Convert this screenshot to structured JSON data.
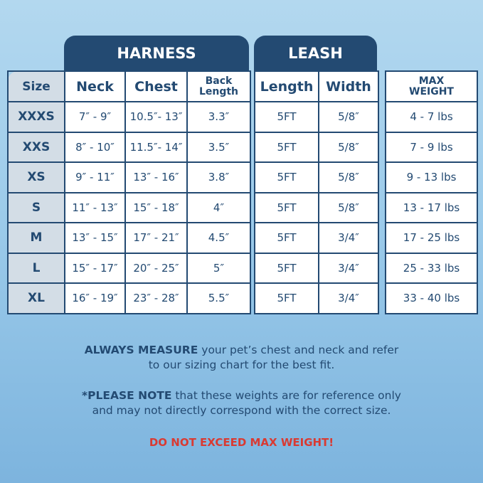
{
  "headers": {
    "harness": "HARNESS",
    "leash": "LEASH"
  },
  "columns": {
    "size": "Size",
    "neck": "Neck",
    "chest": "Chest",
    "back_1": "Back",
    "back_2": "Length",
    "length": "Length",
    "width": "Width",
    "max_1": "MAX",
    "max_2": "WEIGHT"
  },
  "rows": [
    {
      "size": "XXXS",
      "neck": "7″ - 9″",
      "chest": "10.5″- 13″",
      "back": "3.3″",
      "length": "5FT",
      "width": "5/8″",
      "weight": "4 - 7 lbs"
    },
    {
      "size": "XXS",
      "neck": "8″ - 10″",
      "chest": "11.5″- 14″",
      "back": "3.5″",
      "length": "5FT",
      "width": "5/8″",
      "weight": "7 - 9 lbs"
    },
    {
      "size": "XS",
      "neck": "9″ - 11″",
      "chest": "13″ - 16″",
      "back": "3.8″",
      "length": "5FT",
      "width": "5/8″",
      "weight": "9 - 13 lbs"
    },
    {
      "size": "S",
      "neck": "11″ - 13″",
      "chest": "15″ - 18″",
      "back": "4″",
      "length": "5FT",
      "width": "5/8″",
      "weight": "13 - 17 lbs"
    },
    {
      "size": "M",
      "neck": "13″ - 15″",
      "chest": "17″ - 21″",
      "back": "4.5″",
      "length": "5FT",
      "width": "3/4″",
      "weight": "17 - 25 lbs"
    },
    {
      "size": "L",
      "neck": "15″ - 17″",
      "chest": "20″ - 25″",
      "back": "5″",
      "length": "5FT",
      "width": "3/4″",
      "weight": "25 - 33 lbs"
    },
    {
      "size": "XL",
      "neck": "16″ - 19″",
      "chest": "23″ - 28″",
      "back": "5.5″",
      "length": "5FT",
      "width": "3/4″",
      "weight": "33 - 40 lbs"
    }
  ],
  "notes": {
    "measure_bold": "ALWAYS MEASURE",
    "measure_rest": " your pet’s chest and neck and refer",
    "measure_line2": "to our sizing chart for the best fit.",
    "note_bold": "*PLEASE NOTE",
    "note_rest": " that these weights are for reference only",
    "note_line2": "and may not directly correspond with the correct size.",
    "warning": "DO NOT EXCEED MAX WEIGHT!"
  },
  "colors": {
    "navy": "#234a72",
    "warning": "#d93a32",
    "size_column": "#d3dde6"
  }
}
